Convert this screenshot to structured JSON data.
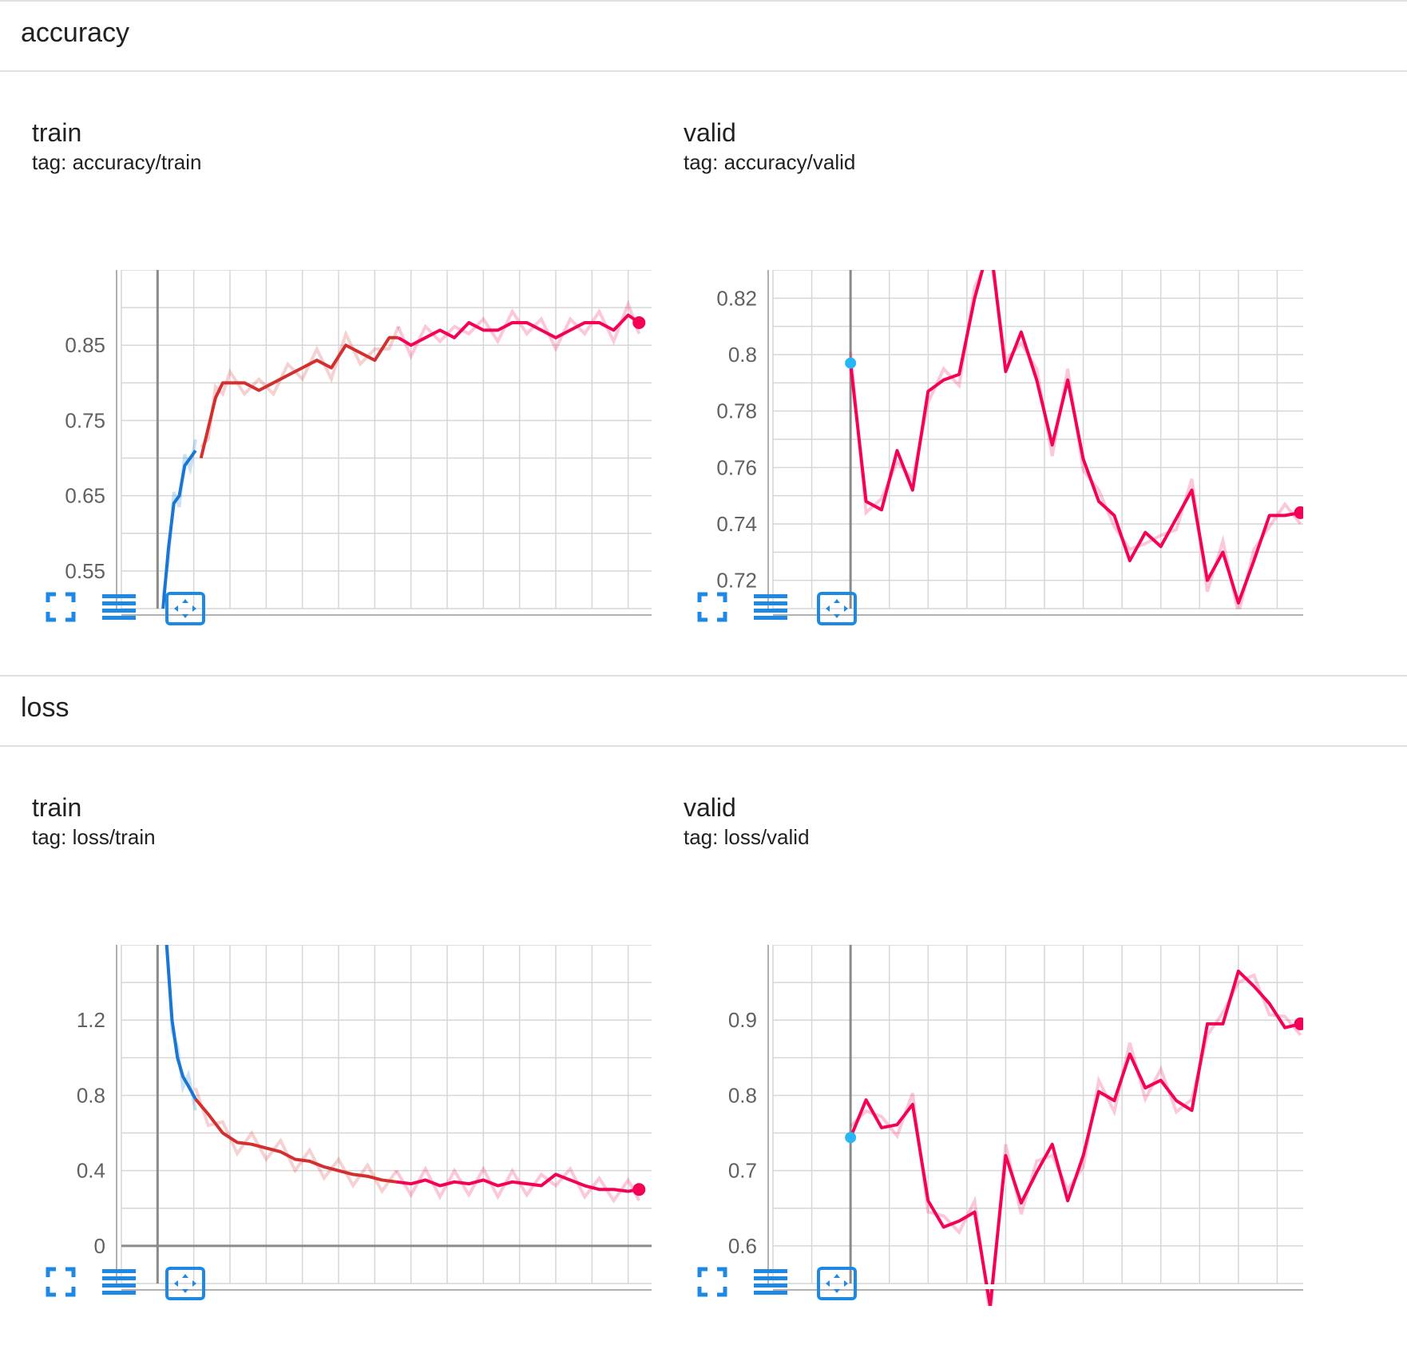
{
  "sections": [
    {
      "title": "accuracy"
    },
    {
      "title": "loss"
    }
  ],
  "colors": {
    "run_blue": "#1976d2",
    "run_red": "#d32f2f",
    "run_pink": "#f50057",
    "run_cyan": "#29b6f6",
    "grid": "#d6d6d6",
    "toolbar_icon": "#1e88e5"
  },
  "toolbar_icons": [
    "fullscreen-icon",
    "data-table-icon",
    "fit-domain-icon"
  ],
  "chart_data": [
    {
      "type": "line",
      "title": "train",
      "tag": "tag: accuracy/train",
      "xticks": [
        0,
        40,
        80,
        120,
        160,
        200,
        240
      ],
      "yticks": [
        0.55,
        0.65,
        0.75,
        0.85
      ],
      "xlim": [
        -20,
        280
      ],
      "ylim": [
        0.5,
        0.95
      ],
      "series": [
        {
          "color": "#1976d2",
          "x": [
            3,
            6,
            9,
            12,
            15,
            18,
            21
          ],
          "y": [
            0.5,
            0.58,
            0.64,
            0.65,
            0.69,
            0.7,
            0.71
          ]
        },
        {
          "color": "#d32f2f",
          "x": [
            24,
            28,
            32,
            36,
            40,
            48,
            56,
            64,
            72,
            80,
            88,
            96,
            104,
            112,
            120,
            128,
            133
          ],
          "y": [
            0.7,
            0.74,
            0.78,
            0.8,
            0.8,
            0.8,
            0.79,
            0.8,
            0.81,
            0.82,
            0.83,
            0.82,
            0.85,
            0.84,
            0.83,
            0.86,
            0.86
          ]
        },
        {
          "color": "#f50057",
          "x": [
            133,
            140,
            148,
            156,
            164,
            172,
            180,
            188,
            196,
            204,
            212,
            220,
            228,
            236,
            244,
            252,
            260,
            266
          ],
          "y": [
            0.86,
            0.85,
            0.86,
            0.87,
            0.86,
            0.88,
            0.87,
            0.87,
            0.88,
            0.88,
            0.87,
            0.86,
            0.87,
            0.88,
            0.88,
            0.87,
            0.89,
            0.88
          ]
        }
      ]
    },
    {
      "type": "line",
      "title": "valid",
      "tag": "tag: accuracy/valid",
      "xticks": [
        0,
        5,
        10,
        15,
        20,
        25
      ],
      "yticks": [
        0.72,
        0.74,
        0.76,
        0.78,
        0.8,
        0.82
      ],
      "xlim": [
        -5,
        30
      ],
      "ylim": [
        0.71,
        0.83
      ],
      "series": [
        {
          "color": "#f50057",
          "x": [
            0,
            1,
            2,
            3,
            4,
            5,
            6,
            7,
            8,
            9,
            10,
            11,
            12,
            13,
            14,
            15,
            16,
            17,
            18,
            19,
            20,
            21,
            22,
            23,
            24,
            25,
            26,
            27,
            28,
            29
          ],
          "y": [
            0.797,
            0.748,
            0.745,
            0.766,
            0.752,
            0.787,
            0.791,
            0.793,
            0.82,
            0.84,
            0.794,
            0.808,
            0.791,
            0.768,
            0.791,
            0.763,
            0.748,
            0.743,
            0.727,
            0.737,
            0.732,
            0.742,
            0.752,
            0.72,
            0.73,
            0.712,
            0.727,
            0.743,
            0.743,
            0.744
          ]
        }
      ]
    },
    {
      "type": "line",
      "title": "train",
      "tag": "tag: loss/train",
      "xticks": [
        0,
        40,
        80,
        120,
        160,
        200,
        240
      ],
      "yticks": [
        0,
        0.4,
        0.8,
        1.2
      ],
      "xlim": [
        -20,
        280
      ],
      "ylim": [
        -0.2,
        1.6
      ],
      "series": [
        {
          "color": "#1976d2",
          "x": [
            5,
            8,
            11,
            14,
            17,
            21
          ],
          "y": [
            1.6,
            1.2,
            1.0,
            0.9,
            0.85,
            0.78
          ]
        },
        {
          "color": "#d32f2f",
          "x": [
            21,
            28,
            36,
            44,
            52,
            60,
            68,
            76,
            84,
            92,
            100,
            108,
            116,
            124,
            132
          ],
          "y": [
            0.78,
            0.7,
            0.6,
            0.55,
            0.54,
            0.52,
            0.5,
            0.46,
            0.45,
            0.42,
            0.4,
            0.38,
            0.37,
            0.35,
            0.34
          ]
        },
        {
          "color": "#f50057",
          "x": [
            132,
            140,
            148,
            156,
            164,
            172,
            180,
            188,
            196,
            204,
            212,
            220,
            228,
            236,
            244,
            252,
            260,
            266
          ],
          "y": [
            0.34,
            0.33,
            0.35,
            0.32,
            0.34,
            0.33,
            0.35,
            0.32,
            0.34,
            0.33,
            0.32,
            0.38,
            0.35,
            0.32,
            0.3,
            0.3,
            0.29,
            0.3
          ]
        }
      ]
    },
    {
      "type": "line",
      "title": "valid",
      "tag": "tag: loss/valid",
      "xticks": [
        0,
        5,
        10,
        15,
        20,
        25
      ],
      "yticks": [
        0.6,
        0.7,
        0.8,
        0.9
      ],
      "xlim": [
        -5,
        30
      ],
      "ylim": [
        0.55,
        1.0
      ],
      "series": [
        {
          "color": "#f50057",
          "x": [
            0,
            1,
            2,
            3,
            4,
            5,
            6,
            7,
            8,
            9,
            10,
            11,
            12,
            13,
            14,
            15,
            16,
            17,
            18,
            19,
            20,
            21,
            22,
            23,
            24,
            25,
            26,
            27,
            28,
            29
          ],
          "y": [
            0.744,
            0.794,
            0.757,
            0.761,
            0.788,
            0.66,
            0.625,
            0.633,
            0.645,
            0.52,
            0.72,
            0.657,
            0.698,
            0.735,
            0.66,
            0.72,
            0.805,
            0.793,
            0.855,
            0.81,
            0.82,
            0.793,
            0.78,
            0.895,
            0.895,
            0.965,
            0.945,
            0.922,
            0.89,
            0.895
          ]
        }
      ]
    }
  ]
}
